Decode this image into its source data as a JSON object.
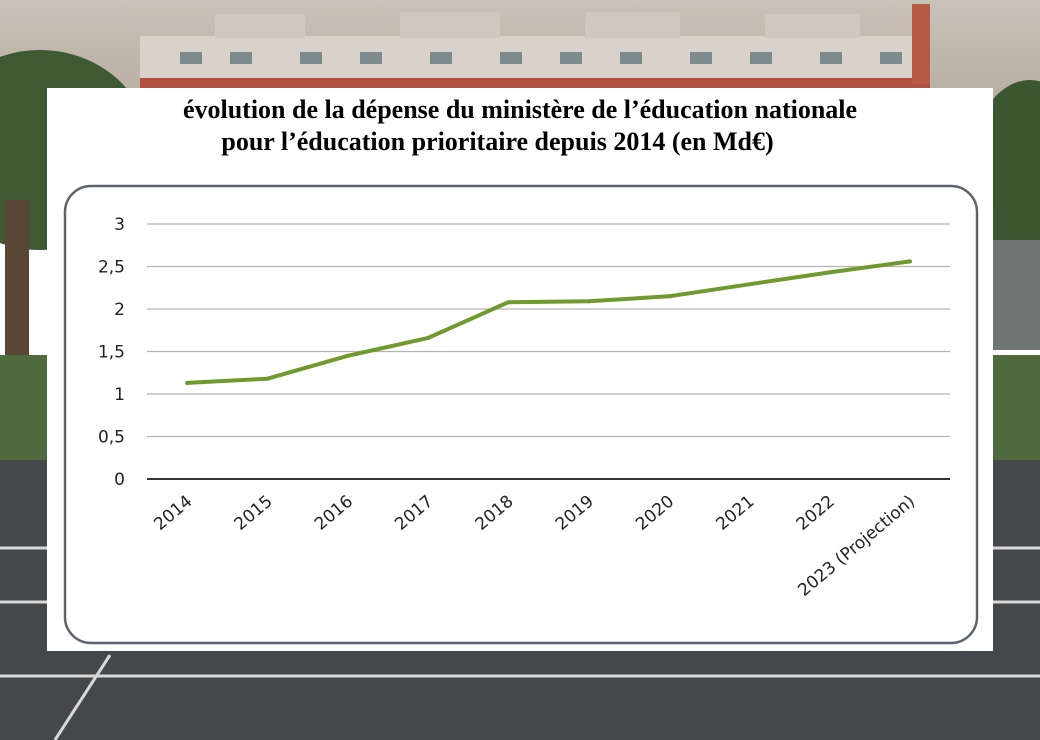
{
  "title": {
    "line1": "évolution de la dépense du ministère de l’éducation nationale",
    "line2": "pour l’éducation prioritaire depuis 2014 (en Md€)"
  },
  "colors": {
    "series": "#6e9a2e",
    "grid": "#b3b3b3",
    "axis": "#333333",
    "frame": "#5c6470",
    "text": "#222222"
  },
  "chart_data": {
    "type": "line",
    "categories": [
      "2014",
      "2015",
      "2016",
      "2017",
      "2018",
      "2019",
      "2020",
      "2021",
      "2022",
      "2023 (Projection)"
    ],
    "values": [
      1.13,
      1.18,
      1.45,
      1.66,
      2.08,
      2.09,
      2.15,
      2.29,
      2.43,
      2.56
    ],
    "yticks": [
      "0",
      "0,5",
      "1",
      "1,5",
      "2",
      "2,5",
      "3"
    ],
    "ylim": [
      0,
      3
    ],
    "grid": true,
    "legend": "none"
  }
}
